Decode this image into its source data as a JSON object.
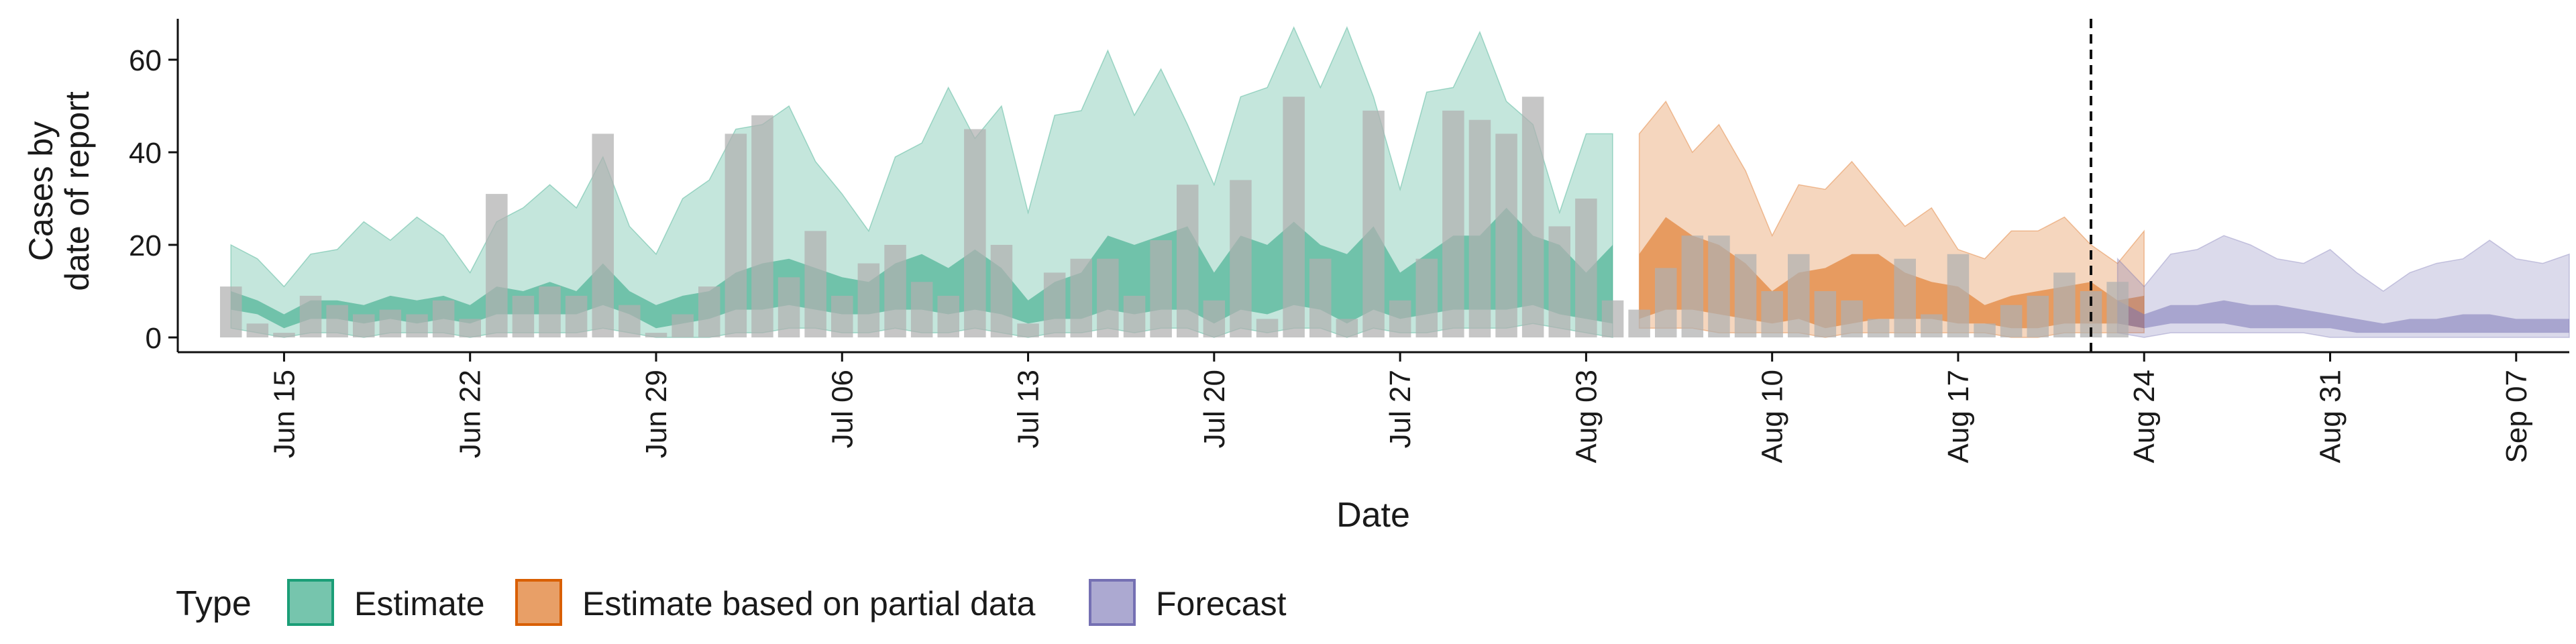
{
  "chart_data": {
    "type": "area",
    "xlabel": "Date",
    "ylabel_lines": [
      "Cases by",
      "date of report"
    ],
    "ylim": [
      0,
      70
    ],
    "yticks": [
      0,
      20,
      40,
      60
    ],
    "x_start": "2020-06-11",
    "x_end": "2020-09-09",
    "xticks": [
      {
        "date": "2020-06-15",
        "label": "Jun 15"
      },
      {
        "date": "2020-06-22",
        "label": "Jun 22"
      },
      {
        "date": "2020-06-29",
        "label": "Jun 29"
      },
      {
        "date": "2020-07-06",
        "label": "Jul 06"
      },
      {
        "date": "2020-07-13",
        "label": "Jul 13"
      },
      {
        "date": "2020-07-20",
        "label": "Jul 20"
      },
      {
        "date": "2020-07-27",
        "label": "Jul 27"
      },
      {
        "date": "2020-08-03",
        "label": "Aug 03"
      },
      {
        "date": "2020-08-10",
        "label": "Aug 10"
      },
      {
        "date": "2020-08-17",
        "label": "Aug 17"
      },
      {
        "date": "2020-08-24",
        "label": "Aug 24"
      },
      {
        "date": "2020-08-31",
        "label": "Aug 31"
      },
      {
        "date": "2020-09-07",
        "label": "Sep 07"
      }
    ],
    "vline_date": "2020-08-22",
    "legend_title": "Type",
    "legend_position": "bottom",
    "reported_cases": {
      "name": "",
      "color": "#b0b0b0",
      "start_date": "2020-06-13",
      "values": [
        11,
        3,
        1,
        9,
        7,
        5,
        6,
        5,
        8,
        4,
        31,
        9,
        11,
        9,
        44,
        7,
        1,
        5,
        11,
        44,
        48,
        13,
        23,
        9,
        16,
        20,
        12,
        9,
        45,
        20,
        3,
        14,
        17,
        17,
        9,
        21,
        33,
        8,
        34,
        4,
        52,
        17,
        4,
        49,
        8,
        17,
        49,
        47,
        44,
        52,
        24,
        30,
        8,
        6,
        15,
        22,
        22,
        18,
        10,
        18,
        10,
        8,
        4,
        17,
        5,
        18,
        3,
        7,
        9,
        14,
        10,
        12
      ]
    },
    "series": [
      {
        "name": "Estimate",
        "color": "#1b9e77",
        "start_date": "2020-06-13",
        "lower90": [
          2,
          1,
          0,
          1,
          1,
          0,
          1,
          1,
          1,
          0,
          1,
          1,
          1,
          1,
          2,
          1,
          0,
          0,
          0,
          1,
          1,
          2,
          2,
          1,
          1,
          2,
          1,
          1,
          2,
          1,
          0,
          1,
          1,
          2,
          1,
          2,
          2,
          0,
          2,
          1,
          2,
          2,
          0,
          2,
          1,
          1,
          2,
          2,
          2,
          3,
          2,
          1,
          0
        ],
        "lower50": [
          6,
          5,
          2,
          4,
          4,
          3,
          4,
          3,
          4,
          3,
          5,
          5,
          5,
          5,
          7,
          5,
          2,
          3,
          4,
          6,
          6,
          7,
          6,
          5,
          5,
          6,
          6,
          5,
          6,
          5,
          3,
          4,
          4,
          6,
          5,
          6,
          6,
          3,
          6,
          5,
          7,
          6,
          3,
          6,
          4,
          5,
          6,
          6,
          6,
          7,
          5,
          4,
          3
        ],
        "upper50": [
          10,
          8,
          5,
          8,
          8,
          7,
          9,
          8,
          9,
          7,
          11,
          10,
          12,
          10,
          16,
          10,
          7,
          9,
          10,
          14,
          16,
          17,
          15,
          13,
          12,
          16,
          18,
          15,
          19,
          15,
          8,
          12,
          14,
          22,
          20,
          22,
          24,
          14,
          22,
          20,
          25,
          20,
          18,
          24,
          14,
          18,
          22,
          22,
          28,
          22,
          20,
          14,
          20
        ],
        "upper90": [
          20,
          17,
          11,
          18,
          19,
          25,
          21,
          26,
          22,
          14,
          25,
          28,
          33,
          28,
          39,
          24,
          18,
          30,
          34,
          45,
          46,
          50,
          38,
          31,
          23,
          39,
          42,
          54,
          43,
          50,
          27,
          48,
          49,
          62,
          48,
          58,
          46,
          33,
          52,
          54,
          67,
          54,
          67,
          52,
          32,
          53,
          54,
          66,
          51,
          46,
          27,
          44,
          44
        ]
      },
      {
        "name": "Estimate based on partial data",
        "color": "#d95f02",
        "start_date": "2020-08-05",
        "lower90": [
          2,
          2,
          2,
          1,
          1,
          1,
          1,
          0,
          1,
          1,
          1,
          1,
          1,
          1,
          0,
          0,
          1,
          1,
          1,
          1
        ],
        "lower50": [
          4,
          6,
          6,
          5,
          4,
          3,
          4,
          2,
          3,
          4,
          4,
          4,
          3,
          3,
          2,
          2,
          3,
          3,
          3,
          2
        ],
        "upper50": [
          18,
          26,
          22,
          20,
          16,
          10,
          14,
          15,
          18,
          18,
          14,
          12,
          11,
          7,
          9,
          10,
          11,
          12,
          8,
          9
        ],
        "upper90": [
          44,
          51,
          40,
          46,
          36,
          22,
          33,
          32,
          38,
          31,
          24,
          28,
          19,
          17,
          23,
          23,
          26,
          20,
          16,
          23
        ]
      },
      {
        "name": "Forecast",
        "color": "#7570b3",
        "start_date": "2020-08-23",
        "lower90": [
          1,
          0,
          1,
          1,
          1,
          1,
          1,
          1,
          0,
          0,
          0,
          0,
          0,
          0,
          0,
          0,
          0,
          0
        ],
        "lower50": [
          3,
          2,
          3,
          3,
          3,
          2,
          2,
          2,
          2,
          1,
          1,
          1,
          1,
          1,
          1,
          1,
          1,
          1
        ],
        "upper50": [
          8,
          5,
          7,
          7,
          8,
          7,
          7,
          6,
          5,
          4,
          3,
          4,
          4,
          5,
          5,
          4,
          4,
          4
        ],
        "upper90": [
          17,
          11,
          18,
          19,
          22,
          20,
          17,
          16,
          19,
          14,
          10,
          14,
          16,
          17,
          21,
          17,
          16,
          18
        ]
      }
    ]
  }
}
